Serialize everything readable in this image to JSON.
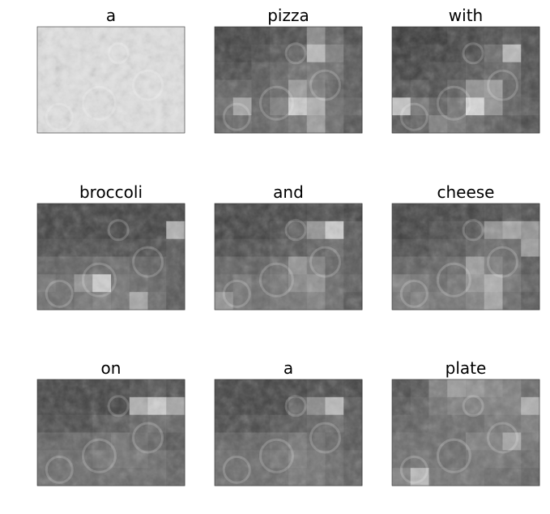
{
  "chart_data": {
    "type": "heatmap",
    "grid": {
      "rows": 6,
      "cols": 8
    },
    "colormap": "gray",
    "panels": [
      {
        "title": "a",
        "attention": [
          [
            0.95,
            0.95,
            0.95,
            0.95,
            0.95,
            0.95,
            0.95,
            0.95
          ],
          [
            0.95,
            0.95,
            0.95,
            0.95,
            0.95,
            0.95,
            0.95,
            0.95
          ],
          [
            0.95,
            0.95,
            0.95,
            0.95,
            0.95,
            0.95,
            0.95,
            0.95
          ],
          [
            0.95,
            0.95,
            0.95,
            0.95,
            0.95,
            0.95,
            0.95,
            0.95
          ],
          [
            0.95,
            0.95,
            0.95,
            0.95,
            0.95,
            0.95,
            0.95,
            0.95
          ],
          [
            0.95,
            0.95,
            0.95,
            0.95,
            0.95,
            0.95,
            0.95,
            0.95
          ]
        ]
      },
      {
        "title": "pizza",
        "attention": [
          [
            0.15,
            0.15,
            0.15,
            0.2,
            0.2,
            0.5,
            0.3,
            0.2
          ],
          [
            0.15,
            0.15,
            0.2,
            0.25,
            0.3,
            0.75,
            0.45,
            0.25
          ],
          [
            0.2,
            0.2,
            0.25,
            0.3,
            0.35,
            0.4,
            0.35,
            0.25
          ],
          [
            0.3,
            0.3,
            0.25,
            0.35,
            0.6,
            0.45,
            0.3,
            0.25
          ],
          [
            0.35,
            0.65,
            0.3,
            0.45,
            0.85,
            0.7,
            0.35,
            0.3
          ],
          [
            0.3,
            0.35,
            0.3,
            0.35,
            0.4,
            0.6,
            0.35,
            0.25
          ]
        ]
      },
      {
        "title": "with",
        "attention": [
          [
            0.1,
            0.1,
            0.1,
            0.15,
            0.15,
            0.2,
            0.25,
            0.2
          ],
          [
            0.1,
            0.15,
            0.15,
            0.15,
            0.2,
            0.35,
            0.75,
            0.2
          ],
          [
            0.15,
            0.15,
            0.2,
            0.2,
            0.25,
            0.3,
            0.35,
            0.2
          ],
          [
            0.2,
            0.25,
            0.2,
            0.3,
            0.55,
            0.6,
            0.3,
            0.2
          ],
          [
            0.8,
            0.4,
            0.3,
            0.4,
            0.9,
            0.55,
            0.3,
            0.25
          ],
          [
            0.25,
            0.3,
            0.45,
            0.4,
            0.35,
            0.3,
            0.25,
            0.2
          ]
        ]
      },
      {
        "title": "broccoli",
        "attention": [
          [
            0.15,
            0.15,
            0.15,
            0.15,
            0.15,
            0.15,
            0.15,
            0.15
          ],
          [
            0.15,
            0.15,
            0.15,
            0.15,
            0.15,
            0.15,
            0.15,
            0.7
          ],
          [
            0.2,
            0.2,
            0.2,
            0.2,
            0.2,
            0.2,
            0.2,
            0.25
          ],
          [
            0.3,
            0.3,
            0.3,
            0.35,
            0.35,
            0.3,
            0.3,
            0.25
          ],
          [
            0.4,
            0.35,
            0.55,
            0.85,
            0.4,
            0.35,
            0.3,
            0.25
          ],
          [
            0.35,
            0.35,
            0.4,
            0.45,
            0.4,
            0.65,
            0.35,
            0.25
          ]
        ]
      },
      {
        "title": "and",
        "attention": [
          [
            0.15,
            0.15,
            0.15,
            0.15,
            0.15,
            0.2,
            0.2,
            0.15
          ],
          [
            0.15,
            0.15,
            0.15,
            0.2,
            0.3,
            0.55,
            0.85,
            0.25
          ],
          [
            0.2,
            0.2,
            0.2,
            0.25,
            0.25,
            0.3,
            0.35,
            0.25
          ],
          [
            0.3,
            0.3,
            0.3,
            0.35,
            0.55,
            0.45,
            0.3,
            0.25
          ],
          [
            0.35,
            0.4,
            0.35,
            0.4,
            0.5,
            0.55,
            0.35,
            0.3
          ],
          [
            0.55,
            0.4,
            0.35,
            0.4,
            0.4,
            0.45,
            0.35,
            0.25
          ]
        ]
      },
      {
        "title": "cheese",
        "attention": [
          [
            0.15,
            0.15,
            0.15,
            0.15,
            0.15,
            0.2,
            0.25,
            0.2
          ],
          [
            0.15,
            0.15,
            0.2,
            0.2,
            0.25,
            0.55,
            0.65,
            0.55
          ],
          [
            0.2,
            0.2,
            0.25,
            0.25,
            0.3,
            0.35,
            0.35,
            0.6
          ],
          [
            0.3,
            0.3,
            0.3,
            0.35,
            0.6,
            0.45,
            0.35,
            0.25
          ],
          [
            0.45,
            0.4,
            0.35,
            0.4,
            0.55,
            0.7,
            0.4,
            0.3
          ],
          [
            0.4,
            0.45,
            0.4,
            0.4,
            0.45,
            0.65,
            0.35,
            0.25
          ]
        ]
      },
      {
        "title": "on",
        "attention": [
          [
            0.15,
            0.15,
            0.15,
            0.15,
            0.15,
            0.2,
            0.25,
            0.2
          ],
          [
            0.15,
            0.15,
            0.15,
            0.15,
            0.15,
            0.7,
            0.85,
            0.65
          ],
          [
            0.2,
            0.2,
            0.2,
            0.25,
            0.25,
            0.3,
            0.35,
            0.3
          ],
          [
            0.3,
            0.3,
            0.3,
            0.35,
            0.4,
            0.35,
            0.3,
            0.25
          ],
          [
            0.35,
            0.35,
            0.35,
            0.4,
            0.4,
            0.4,
            0.35,
            0.3
          ],
          [
            0.35,
            0.35,
            0.35,
            0.35,
            0.35,
            0.35,
            0.35,
            0.3
          ]
        ]
      },
      {
        "title": "a",
        "attention": [
          [
            0.15,
            0.15,
            0.15,
            0.15,
            0.15,
            0.2,
            0.2,
            0.15
          ],
          [
            0.15,
            0.15,
            0.15,
            0.15,
            0.3,
            0.5,
            0.75,
            0.25
          ],
          [
            0.2,
            0.2,
            0.2,
            0.25,
            0.25,
            0.3,
            0.35,
            0.25
          ],
          [
            0.3,
            0.3,
            0.3,
            0.35,
            0.4,
            0.35,
            0.3,
            0.25
          ],
          [
            0.35,
            0.35,
            0.35,
            0.4,
            0.45,
            0.4,
            0.35,
            0.3
          ],
          [
            0.35,
            0.35,
            0.35,
            0.35,
            0.4,
            0.4,
            0.35,
            0.3
          ]
        ]
      },
      {
        "title": "plate",
        "attention": [
          [
            0.2,
            0.25,
            0.45,
            0.6,
            0.55,
            0.5,
            0.45,
            0.35
          ],
          [
            0.25,
            0.3,
            0.4,
            0.45,
            0.45,
            0.45,
            0.45,
            0.7
          ],
          [
            0.3,
            0.3,
            0.35,
            0.35,
            0.35,
            0.4,
            0.4,
            0.45
          ],
          [
            0.35,
            0.35,
            0.35,
            0.35,
            0.45,
            0.45,
            0.65,
            0.4
          ],
          [
            0.35,
            0.4,
            0.35,
            0.35,
            0.4,
            0.4,
            0.4,
            0.35
          ],
          [
            0.45,
            0.75,
            0.4,
            0.4,
            0.4,
            0.35,
            0.35,
            0.3
          ]
        ]
      }
    ]
  }
}
